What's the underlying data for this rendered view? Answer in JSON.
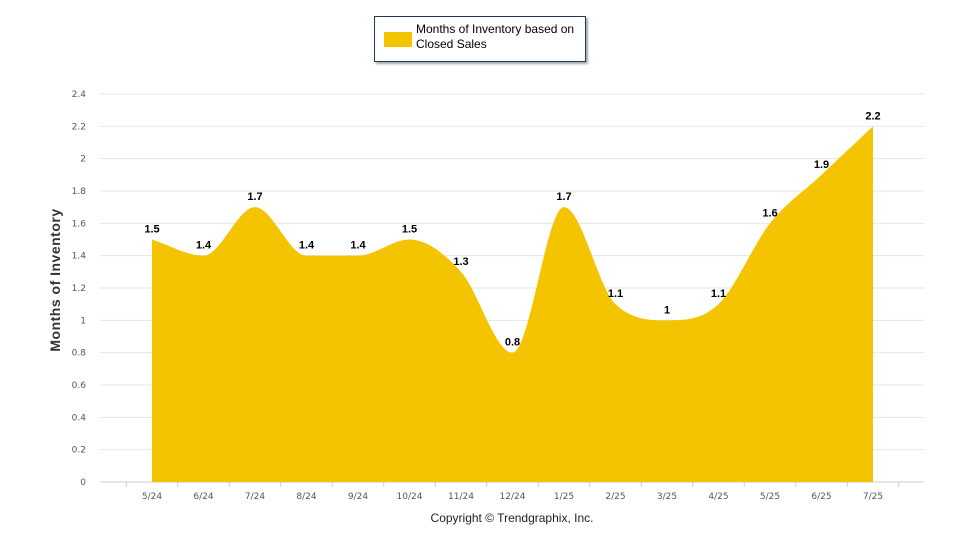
{
  "legend": {
    "label": "Months of Inventory based on Closed Sales"
  },
  "footer": {
    "copyright": "Copyright © Trendgraphix, Inc."
  },
  "colors": {
    "area": "#F5C400",
    "grid": "#e6e6e6",
    "axis": "#cccccc"
  },
  "chart_data": {
    "type": "area",
    "ylabel": "Months of Inventory",
    "xlabel": "",
    "ylim": [
      0,
      2.4
    ],
    "yticks": [
      "0",
      "0.2",
      "0.4",
      "0.6",
      "0.8",
      "1",
      "1.2",
      "1.4",
      "1.6",
      "1.8",
      "2",
      "2.2",
      "2.4"
    ],
    "categories": [
      "5/24",
      "6/24",
      "7/24",
      "8/24",
      "9/24",
      "10/24",
      "11/24",
      "12/24",
      "1/25",
      "2/25",
      "3/25",
      "4/25",
      "5/25",
      "6/25",
      "7/25"
    ],
    "series": [
      {
        "name": "Months of Inventory based on Closed Sales",
        "values": [
          1.5,
          1.4,
          1.7,
          1.4,
          1.4,
          1.5,
          1.3,
          0.8,
          1.7,
          1.1,
          1,
          1.1,
          1.6,
          1.9,
          2.2
        ],
        "labels": [
          "1.5",
          "1.4",
          "1.7",
          "1.4",
          "1.4",
          "1.5",
          "1.3",
          "0.8",
          "1.7",
          "1.1",
          "1",
          "1.1",
          "1.6",
          "1.9",
          "2.2"
        ]
      }
    ],
    "grid": true,
    "legend_position": "top-center"
  }
}
